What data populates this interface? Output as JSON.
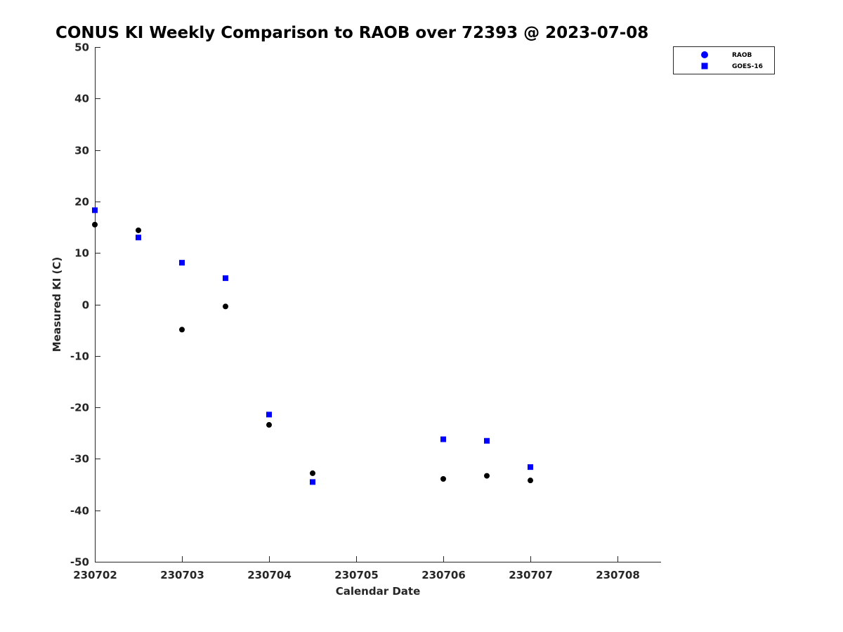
{
  "chart_data": {
    "type": "scatter",
    "title": "CONUS KI Weekly Comparison to RAOB over 72393 @ 2023-07-08",
    "xlabel": "Calendar Date",
    "ylabel": "Measured KI (C)",
    "xlim": [
      230702,
      230708.5
    ],
    "ylim": [
      -50,
      50
    ],
    "x_ticks": [
      230702,
      230703,
      230704,
      230705,
      230706,
      230707,
      230708
    ],
    "x_tick_labels": [
      "230702",
      "230703",
      "230704",
      "230705",
      "230706",
      "230707",
      "230708"
    ],
    "y_ticks": [
      -50,
      -40,
      -30,
      -20,
      -10,
      0,
      10,
      20,
      30,
      40,
      50
    ],
    "y_tick_labels": [
      "-50",
      "-40",
      "-30",
      "-20",
      "-10",
      "0",
      "10",
      "20",
      "30",
      "40",
      "50"
    ],
    "grid": false,
    "legend_position": "top-right",
    "series": [
      {
        "name": "RAOB",
        "marker": "circle",
        "color": "#000000",
        "legend_color": "#0000ff",
        "points": [
          {
            "x": 230702.0,
            "y": 15.5
          },
          {
            "x": 230702.5,
            "y": 14.4
          },
          {
            "x": 230703.0,
            "y": -4.9
          },
          {
            "x": 230703.5,
            "y": -0.4
          },
          {
            "x": 230704.0,
            "y": -23.4
          },
          {
            "x": 230704.5,
            "y": -32.8
          },
          {
            "x": 230706.0,
            "y": -33.9
          },
          {
            "x": 230706.5,
            "y": -33.3
          },
          {
            "x": 230707.0,
            "y": -34.2
          }
        ]
      },
      {
        "name": "GOES-16",
        "marker": "square",
        "color": "#0000ff",
        "legend_color": "#0000ff",
        "points": [
          {
            "x": 230702.0,
            "y": 18.3
          },
          {
            "x": 230702.5,
            "y": 13.0
          },
          {
            "x": 230703.0,
            "y": 8.1
          },
          {
            "x": 230703.5,
            "y": 5.1
          },
          {
            "x": 230704.0,
            "y": -21.4
          },
          {
            "x": 230704.5,
            "y": -34.5
          },
          {
            "x": 230706.0,
            "y": -26.2
          },
          {
            "x": 230706.5,
            "y": -26.5
          },
          {
            "x": 230707.0,
            "y": -31.6
          }
        ]
      }
    ]
  }
}
